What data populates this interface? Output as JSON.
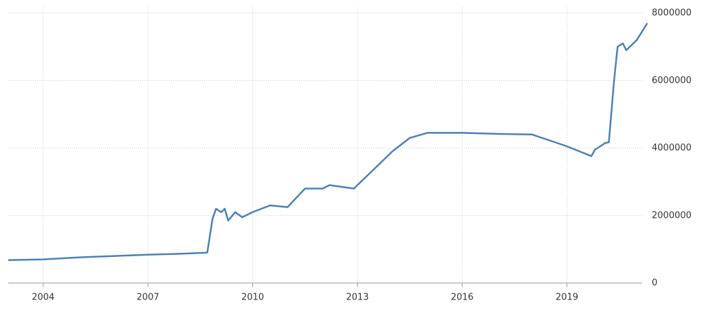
{
  "chart_data": {
    "type": "line",
    "x": [
      2003.0,
      2004.0,
      2005.0,
      2006.0,
      2007.0,
      2008.0,
      2008.7,
      2008.85,
      2008.95,
      2009.1,
      2009.2,
      2009.3,
      2009.5,
      2009.7,
      2010.0,
      2010.5,
      2011.0,
      2011.5,
      2012.0,
      2012.2,
      2012.9,
      2013.0,
      2013.5,
      2014.0,
      2014.5,
      2015.0,
      2016.0,
      2017.0,
      2018.0,
      2019.0,
      2019.7,
      2019.8,
      2020.1,
      2020.2,
      2020.35,
      2020.45,
      2020.6,
      2020.7,
      2021.0,
      2021.3
    ],
    "values": [
      680000,
      700000,
      760000,
      800000,
      840000,
      870000,
      900000,
      1900000,
      2200000,
      2100000,
      2200000,
      1850000,
      2100000,
      1950000,
      2100000,
      2300000,
      2250000,
      2800000,
      2800000,
      2900000,
      2800000,
      2900000,
      3400000,
      3900000,
      4300000,
      4450000,
      4450000,
      4420000,
      4400000,
      4050000,
      3760000,
      3950000,
      4150000,
      4170000,
      6000000,
      7000000,
      7100000,
      6900000,
      7200000,
      7700000
    ],
    "color": "#4a80b6",
    "xlim": [
      2003.0,
      2021.35
    ],
    "xticks": [
      2004,
      2007,
      2010,
      2013,
      2016,
      2019
    ],
    "ylim": [
      0,
      8000000
    ],
    "yticks": [
      0,
      2000000,
      4000000,
      6000000,
      8000000
    ],
    "grid": true
  }
}
